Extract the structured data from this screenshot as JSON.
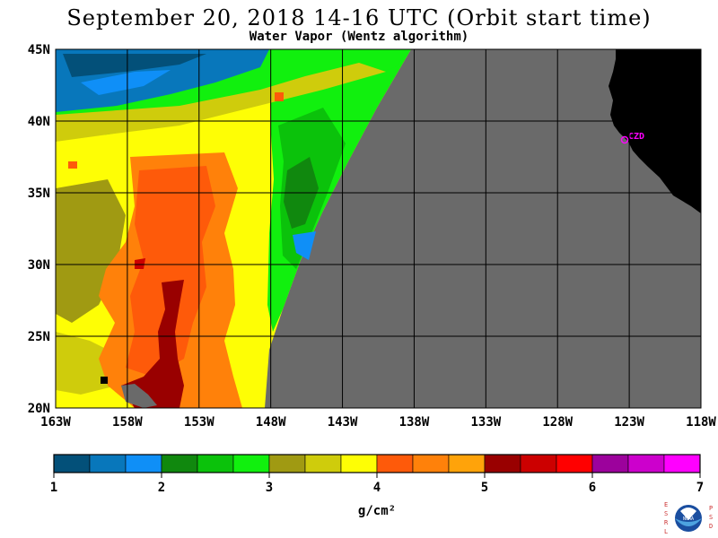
{
  "title": "September 20, 2018  14-16 UTC  (Orbit start time)",
  "subtitle": "Water Vapor (Wentz algorithm)",
  "station_label": "CZD",
  "lat_ticks": [
    "45N",
    "40N",
    "35N",
    "30N",
    "25N",
    "20N"
  ],
  "lon_ticks": [
    "163W",
    "158W",
    "153W",
    "148W",
    "143W",
    "138W",
    "133W",
    "128W",
    "123W",
    "118W"
  ],
  "colorbar": {
    "colors": [
      "#035079",
      "#0877bb",
      "#0f8ff7",
      "#10880e",
      "#0bc20b",
      "#11f00e",
      "#a09a12",
      "#cfcc0c",
      "#fefe05",
      "#fe5a0a",
      "#ff810a",
      "#ffa30a",
      "#990000",
      "#cc0000",
      "#ff0000",
      "#9c029c",
      "#cc00cc",
      "#ff00ff"
    ],
    "tick_labels": [
      "1",
      "2",
      "3",
      "4",
      "5",
      "6",
      "7"
    ],
    "unit": "g/cm²"
  },
  "colors": {
    "no_data": "#6a6a6a",
    "land": "#000000",
    "station": "#ff00ff"
  },
  "logo": {
    "left_text": "ESRL",
    "right_text": "PSD",
    "center_text": "NOAA"
  }
}
